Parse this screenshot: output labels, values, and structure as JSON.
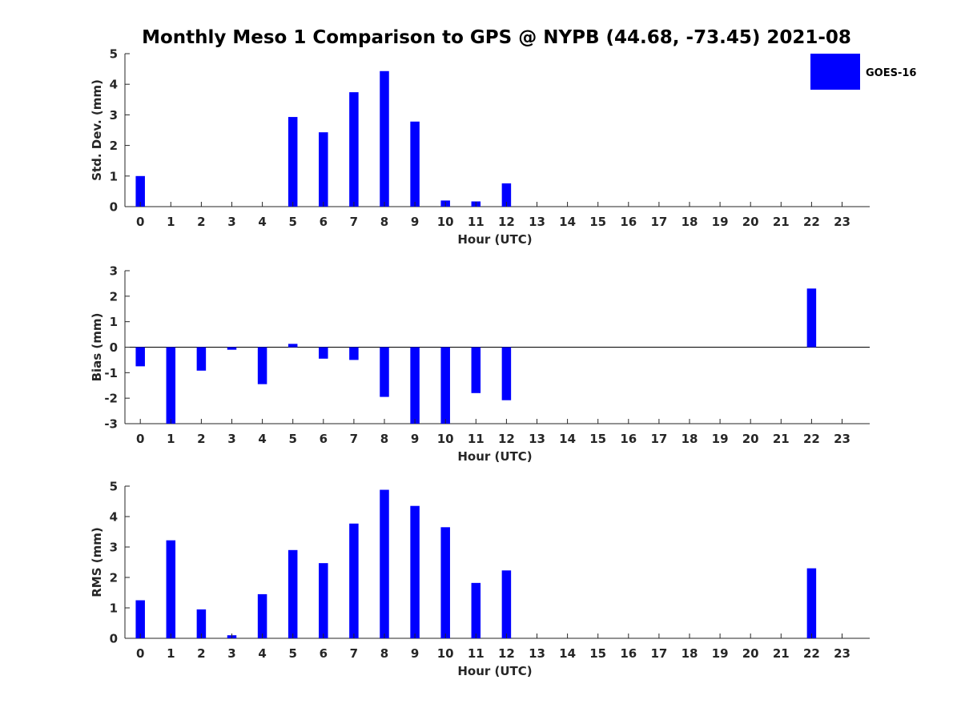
{
  "title": "Monthly Meso 1 Comparison to GPS @ NYPB (44.68, -73.45) 2021-08",
  "legend": {
    "label": "GOES-16",
    "color": "#0000ff"
  },
  "chart_data": [
    {
      "type": "bar",
      "title": "Monthly Meso 1 Comparison to GPS @ NYPB (44.68, -73.45) 2021-08",
      "xlabel": "Hour (UTC)",
      "ylabel": "Std. Dev. (mm)",
      "categories": [
        0,
        1,
        2,
        3,
        4,
        5,
        6,
        7,
        8,
        9,
        10,
        11,
        12,
        13,
        14,
        15,
        16,
        17,
        18,
        19,
        20,
        21,
        22,
        23
      ],
      "ylim": [
        0,
        5
      ],
      "yticks": [
        0,
        1,
        2,
        3,
        4,
        5
      ],
      "series": [
        {
          "name": "GOES-16",
          "values": [
            1.0,
            0,
            0,
            0,
            0,
            2.93,
            2.43,
            3.74,
            4.43,
            2.78,
            0.2,
            0.17,
            0.76,
            0,
            0,
            0,
            0,
            0,
            0,
            0,
            0,
            0,
            0,
            0
          ]
        }
      ],
      "grid": false,
      "legend_position": "top-right"
    },
    {
      "type": "bar",
      "xlabel": "Hour (UTC)",
      "ylabel": "Bias (mm)",
      "categories": [
        0,
        1,
        2,
        3,
        4,
        5,
        6,
        7,
        8,
        9,
        10,
        11,
        12,
        13,
        14,
        15,
        16,
        17,
        18,
        19,
        20,
        21,
        22,
        23
      ],
      "ylim": [
        -3,
        3
      ],
      "yticks": [
        -3,
        -2,
        -1,
        0,
        1,
        2,
        3
      ],
      "series": [
        {
          "name": "GOES-16",
          "values": [
            -0.75,
            -3.2,
            -0.92,
            -0.1,
            -1.45,
            0.13,
            -0.45,
            -0.5,
            -1.95,
            -3.3,
            -3.3,
            -1.8,
            -2.08,
            0,
            0,
            0,
            0,
            0,
            0,
            0,
            0,
            0,
            2.3,
            0
          ]
        }
      ],
      "grid": false
    },
    {
      "type": "bar",
      "xlabel": "Hour (UTC)",
      "ylabel": "RMS (mm)",
      "categories": [
        0,
        1,
        2,
        3,
        4,
        5,
        6,
        7,
        8,
        9,
        10,
        11,
        12,
        13,
        14,
        15,
        16,
        17,
        18,
        19,
        20,
        21,
        22,
        23
      ],
      "ylim": [
        0,
        5
      ],
      "yticks": [
        0,
        1,
        2,
        3,
        4,
        5
      ],
      "series": [
        {
          "name": "GOES-16",
          "values": [
            1.25,
            3.22,
            0.95,
            0.1,
            1.45,
            2.9,
            2.47,
            3.77,
            4.88,
            4.35,
            3.65,
            1.82,
            2.23,
            0,
            0,
            0,
            0,
            0,
            0,
            0,
            0,
            0,
            2.3,
            0
          ]
        }
      ],
      "grid": false
    }
  ]
}
